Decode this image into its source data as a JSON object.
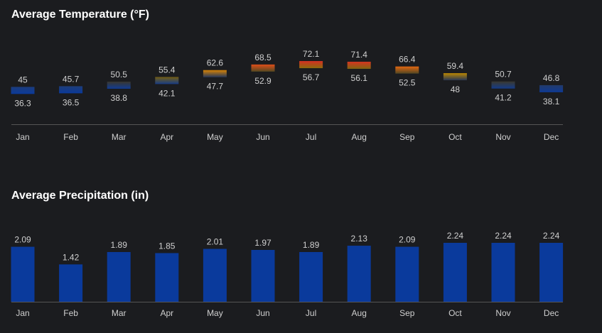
{
  "temperature": {
    "title": "Average Temperature (°F)"
  },
  "precipitation": {
    "title": "Average Precipitation (in)"
  },
  "colors": {
    "background": "#1b1c1f",
    "bar_blue": "#0a3a9c",
    "axis_line": "#555555",
    "text": "#cfcfcf"
  },
  "chart_data": [
    {
      "type": "bar",
      "subtype": "floating-range",
      "title": "Average Temperature (°F)",
      "categories": [
        "Jan",
        "Feb",
        "Mar",
        "Apr",
        "May",
        "Jun",
        "Jul",
        "Aug",
        "Sep",
        "Oct",
        "Nov",
        "Dec"
      ],
      "series": [
        {
          "name": "",
          "values": [
            45,
            45.7,
            50.5,
            55.4,
            62.6,
            68.5,
            72.1,
            71.4,
            66.4,
            59.4,
            50.7,
            46.8
          ]
        },
        {
          "name": "",
          "values": [
            36.3,
            36.5,
            38.8,
            42.1,
            47.7,
            52.9,
            56.7,
            56.1,
            52.5,
            48,
            41.2,
            38.1
          ]
        }
      ],
      "xlabel": "",
      "ylabel": "",
      "grid": false
    },
    {
      "type": "bar",
      "title": "Average Precipitation (in)",
      "categories": [
        "Jan",
        "Feb",
        "Mar",
        "Apr",
        "May",
        "Jun",
        "Jul",
        "Aug",
        "Sep",
        "Oct",
        "Nov",
        "Dec"
      ],
      "values": [
        2.09,
        1.42,
        1.89,
        1.85,
        2.01,
        1.97,
        1.89,
        2.13,
        2.09,
        2.24,
        2.24,
        2.24
      ],
      "xlabel": "",
      "ylabel": "",
      "ylim": [
        0,
        2.24
      ],
      "grid": false
    }
  ]
}
